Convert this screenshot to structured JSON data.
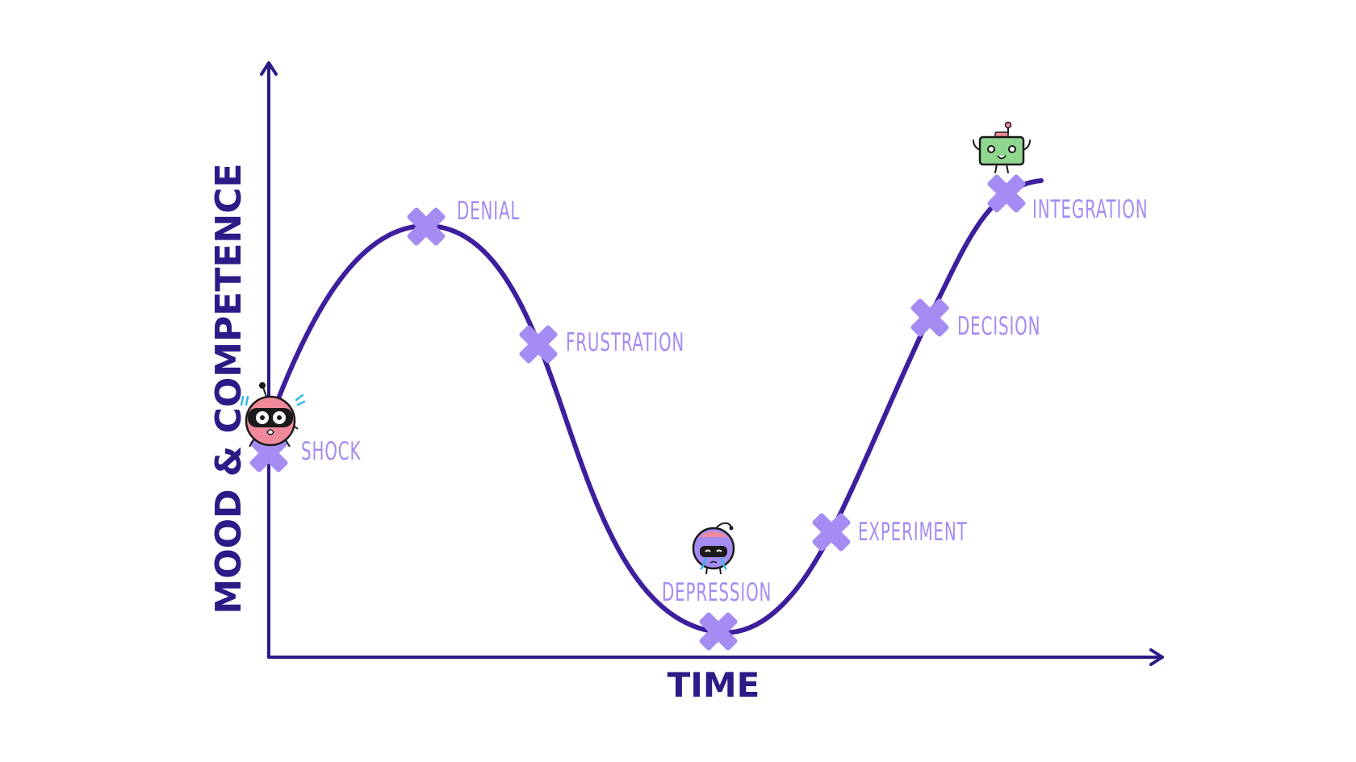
{
  "diagram": {
    "x_axis_label": "TIME",
    "y_axis_label": "MOOD & COMPETENCE",
    "stages": [
      {
        "label": "SHOCK"
      },
      {
        "label": "DENIAL"
      },
      {
        "label": "FRUSTRATION"
      },
      {
        "label": "DEPRESSION"
      },
      {
        "label": "EXPERIMENT"
      },
      {
        "label": "DECISION"
      },
      {
        "label": "INTEGRATION"
      }
    ],
    "characters": [
      {
        "name": "shocked-character",
        "stage": "SHOCK"
      },
      {
        "name": "sad-character",
        "stage": "DEPRESSION"
      },
      {
        "name": "happy-robot-character",
        "stage": "INTEGRATION"
      }
    ]
  },
  "colors": {
    "axis": "#2e1a87",
    "curve": "#3d1f9e",
    "marker": "#a48cf2",
    "label": "#a48cf2"
  }
}
